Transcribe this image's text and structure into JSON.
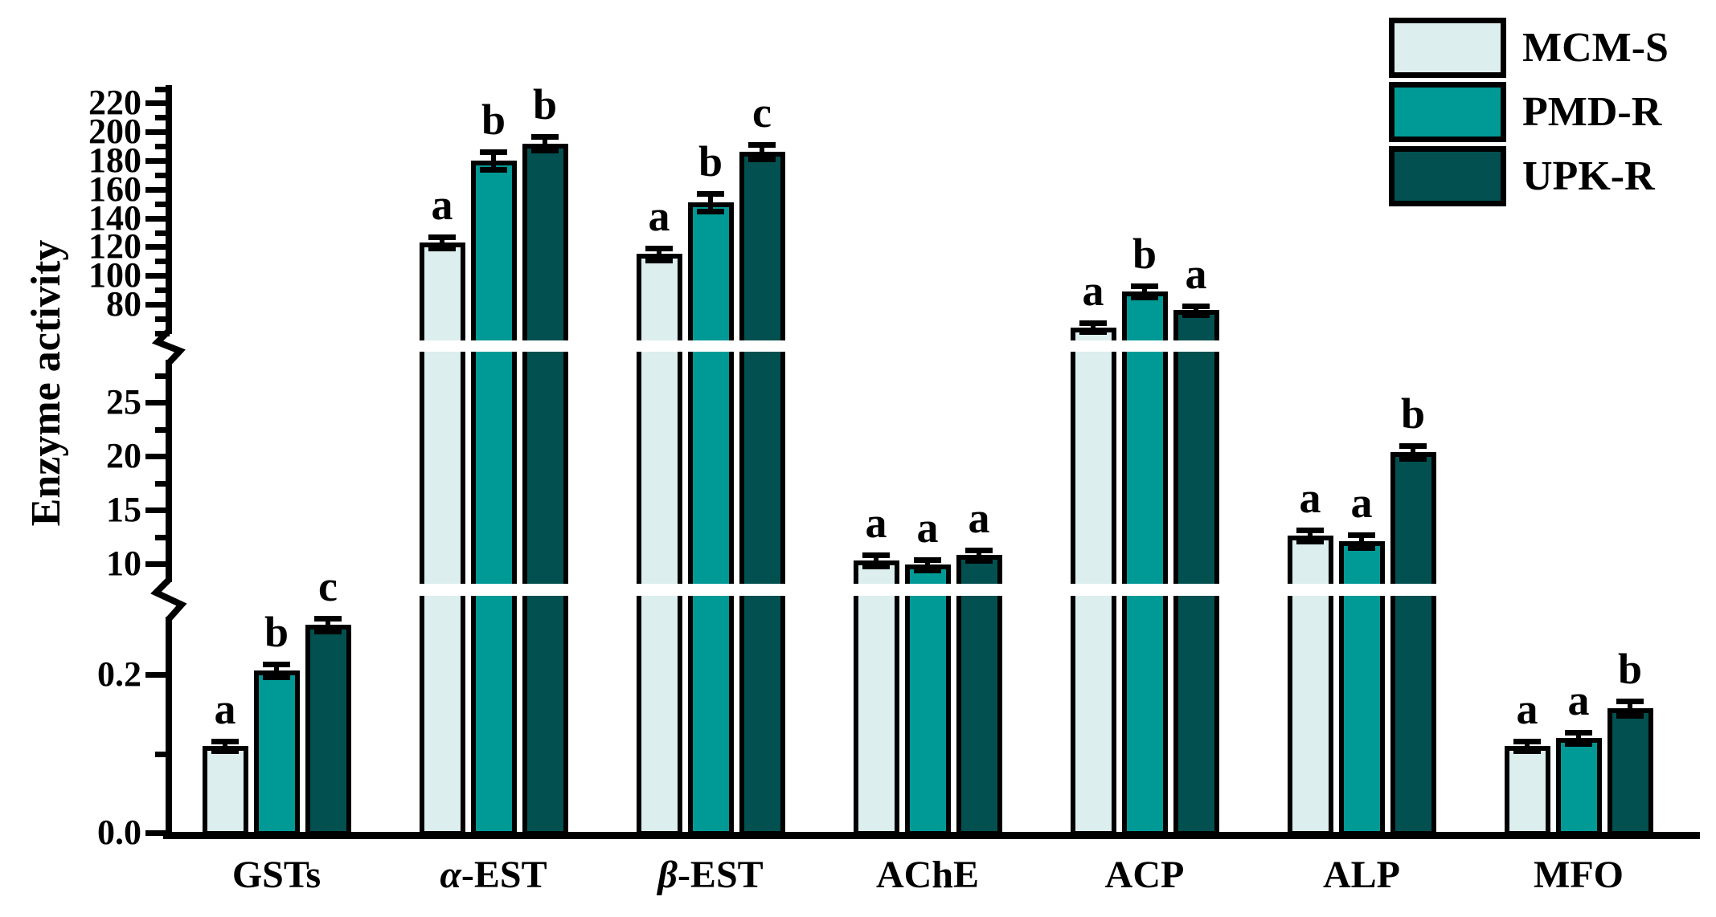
{
  "ylabel": "Enzyme activity",
  "legend": {
    "items": [
      {
        "key": "mcm-s",
        "label": "MCM-S"
      },
      {
        "key": "pmd-r",
        "label": "PMD-R"
      },
      {
        "key": "upk-r",
        "label": "UPK-R"
      }
    ]
  },
  "chart_data": {
    "type": "bar",
    "title": "",
    "xlabel": "",
    "ylabel": "Enzyme activity",
    "axis_style": "broken-y-axis-3-segments",
    "y_segments": [
      {
        "range": [
          0.0,
          0.3
        ],
        "ticks": [
          {
            "v": 0.0,
            "label": "0.0",
            "major": true
          },
          {
            "v": 0.1,
            "label": "",
            "major": false
          },
          {
            "v": 0.2,
            "label": "0.2",
            "major": true
          }
        ]
      },
      {
        "range": [
          8,
          30
        ],
        "ticks": [
          {
            "v": 10,
            "label": "10",
            "major": true
          },
          {
            "v": 12.5,
            "label": "",
            "major": false
          },
          {
            "v": 15,
            "label": "15",
            "major": true
          },
          {
            "v": 17.5,
            "label": "",
            "major": false
          },
          {
            "v": 20,
            "label": "20",
            "major": true
          },
          {
            "v": 22.5,
            "label": "",
            "major": false
          },
          {
            "v": 25,
            "label": "25",
            "major": true
          },
          {
            "v": 27.5,
            "label": "",
            "major": false
          }
        ]
      },
      {
        "range": [
          55,
          240
        ],
        "ticks": [
          {
            "v": 60,
            "label": "",
            "major": false
          },
          {
            "v": 70,
            "label": "",
            "major": false
          },
          {
            "v": 80,
            "label": "80",
            "major": true
          },
          {
            "v": 90,
            "label": "",
            "major": false
          },
          {
            "v": 100,
            "label": "100",
            "major": true
          },
          {
            "v": 110,
            "label": "",
            "major": false
          },
          {
            "v": 120,
            "label": "120",
            "major": true
          },
          {
            "v": 130,
            "label": "",
            "major": false
          },
          {
            "v": 140,
            "label": "140",
            "major": true
          },
          {
            "v": 150,
            "label": "",
            "major": false
          },
          {
            "v": 160,
            "label": "160",
            "major": true
          },
          {
            "v": 170,
            "label": "",
            "major": false
          },
          {
            "v": 180,
            "label": "180",
            "major": true
          },
          {
            "v": 190,
            "label": "",
            "major": false
          },
          {
            "v": 200,
            "label": "200",
            "major": true
          },
          {
            "v": 210,
            "label": "",
            "major": false
          },
          {
            "v": 220,
            "label": "220",
            "major": true
          },
          {
            "v": 230,
            "label": "",
            "major": false
          }
        ]
      }
    ],
    "categories": [
      {
        "key": "gsts",
        "label": "GSTs",
        "greek": "",
        "rest": "GSTs"
      },
      {
        "key": "a-est",
        "label": "α-EST",
        "greek": "α",
        "rest": "-EST"
      },
      {
        "key": "b-est",
        "label": "β-EST",
        "greek": "β",
        "rest": "-EST"
      },
      {
        "key": "ache",
        "label": "AChE",
        "greek": "",
        "rest": "AChE"
      },
      {
        "key": "acp",
        "label": "ACP",
        "greek": "",
        "rest": "ACP"
      },
      {
        "key": "alp",
        "label": "ALP",
        "greek": "",
        "rest": "ALP"
      },
      {
        "key": "mfo",
        "label": "MFO",
        "greek": "",
        "rest": "MFO"
      }
    ],
    "series": [
      {
        "name": "MCM-S",
        "key": "mcm-s",
        "color": "#dceeee",
        "values": [
          0.11,
          123,
          115,
          10.3,
          64,
          12.6,
          0.11
        ],
        "errors": [
          0.006,
          4,
          4,
          0.5,
          3,
          0.5,
          0.006
        ],
        "letters": [
          "a",
          "a",
          "a",
          "a",
          "a",
          "a",
          "a"
        ]
      },
      {
        "name": "PMD-R",
        "key": "pmd-r",
        "color": "#009a96",
        "values": [
          0.205,
          180,
          151,
          9.9,
          89,
          12.1,
          0.12
        ],
        "errors": [
          0.008,
          6,
          6,
          0.5,
          4,
          0.6,
          0.007
        ],
        "letters": [
          "b",
          "b",
          "b",
          "a",
          "b",
          "a",
          "a"
        ]
      },
      {
        "name": "UPK-R",
        "key": "upk-r",
        "color": "#02504f",
        "values": [
          0.263,
          192,
          186,
          10.8,
          76,
          20.4,
          0.157
        ],
        "errors": [
          0.008,
          5,
          5,
          0.5,
          3,
          0.6,
          0.009
        ],
        "letters": [
          "c",
          "b",
          "c",
          "a",
          "a",
          "b",
          "b"
        ]
      }
    ],
    "legend_position": "top-right",
    "grid": false
  }
}
